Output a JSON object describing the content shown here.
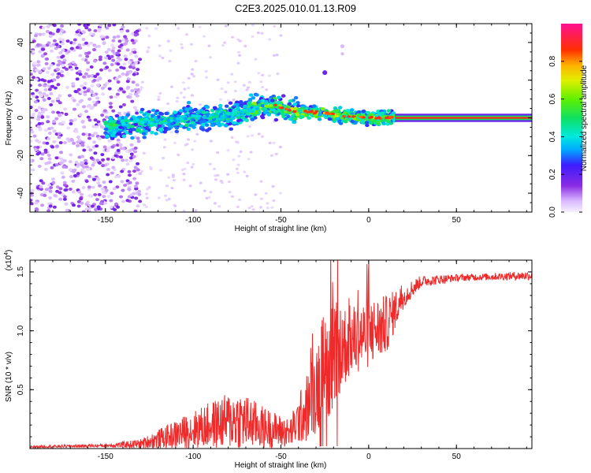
{
  "title": "C2E3.2025.010.01.13.R09",
  "colors": {
    "snr_line": "#ee2a2a",
    "frame": "#000000"
  },
  "colorbar": {
    "label": "Normalized spectral amplitude",
    "range": [
      0.0,
      1.0
    ],
    "ticks": [
      "0.0",
      "0.2",
      "0.4",
      "0.6",
      "0.8"
    ],
    "tick_values": [
      0.0,
      0.2,
      0.4,
      0.6,
      0.8
    ]
  },
  "chart_data": [
    {
      "type": "heatmap",
      "name": "spectrogram",
      "xlabel": "Height of straight line (km)",
      "ylabel": "Frequency (Hz)",
      "xlim": [
        -193,
        93
      ],
      "ylim": [
        -50,
        50
      ],
      "x_ticks": [
        "-150",
        "-100",
        "-50",
        "0",
        "50"
      ],
      "x_tick_values": [
        -150,
        -100,
        -50,
        0,
        50
      ],
      "y_ticks": [
        "40",
        "20",
        "0",
        "-20",
        "-40"
      ],
      "y_tick_values": [
        40,
        20,
        0,
        -20,
        -40
      ],
      "ridge": [
        {
          "x": -145,
          "f": -5
        },
        {
          "x": -120,
          "f": -2
        },
        {
          "x": -100,
          "f": 0
        },
        {
          "x": -80,
          "f": 1
        },
        {
          "x": -65,
          "f": 5
        },
        {
          "x": -55,
          "f": 7
        },
        {
          "x": -45,
          "f": 4
        },
        {
          "x": -30,
          "f": 3
        },
        {
          "x": -15,
          "f": 1
        },
        {
          "x": 0,
          "f": 0
        },
        {
          "x": 15,
          "f": 0
        },
        {
          "x": 93,
          "f": 0
        }
      ]
    },
    {
      "type": "line",
      "name": "snr",
      "xlabel": "Height of straight line (km)",
      "ylabel": "SNR (10 * v/v)",
      "y_multiplier": "(x10",
      "y_multiplier_exp": "4",
      "xlim": [
        -193,
        93
      ],
      "ylim": [
        0,
        16000
      ],
      "x_ticks": [
        "-150",
        "-100",
        "-50",
        "0",
        "50"
      ],
      "x_tick_values": [
        -150,
        -100,
        -50,
        0,
        50
      ],
      "y_ticks": [
        "0.5",
        "1.0",
        "1.5"
      ],
      "y_tick_values": [
        5000,
        10000,
        15000
      ],
      "series": [
        {
          "name": "SNR",
          "envelope_x": [
            -193,
            -150,
            -130,
            -110,
            -90,
            -75,
            -60,
            -45,
            -35,
            -25,
            -20,
            -10,
            0,
            10,
            20,
            30,
            50,
            70,
            93
          ],
          "envelope_mean": [
            150,
            250,
            400,
            1200,
            2000,
            2500,
            1800,
            1300,
            3500,
            7000,
            8000,
            9200,
            9800,
            10500,
            13000,
            14200,
            14500,
            14600,
            14700
          ],
          "envelope_spread": [
            100,
            150,
            400,
            1200,
            2000,
            2600,
            1800,
            1200,
            3000,
            5000,
            4500,
            3000,
            3000,
            2500,
            1000,
            500,
            300,
            300,
            400
          ]
        }
      ]
    }
  ]
}
